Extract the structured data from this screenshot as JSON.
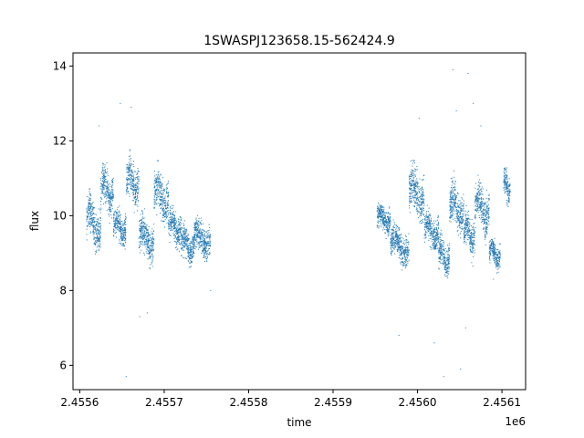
{
  "chart_data": {
    "type": "scatter",
    "title": "1SWASPJ123658.15-562424.9",
    "xlabel": "time",
    "ylabel": "flux",
    "x_offset_label": "1e6",
    "xlim": [
      2455592,
      2456128
    ],
    "ylim": [
      5.35,
      14.35
    ],
    "xticks": [
      2455600,
      2455700,
      2455800,
      2455900,
      2456000,
      2456100
    ],
    "xtick_labels": [
      "2.4556",
      "2.4557",
      "2.4558",
      "2.4559",
      "2.4560",
      "2.4561"
    ],
    "yticks": [
      6,
      8,
      10,
      12,
      14
    ],
    "ytick_labels": [
      "6",
      "8",
      "10",
      "12",
      "14"
    ],
    "marker_color": "#1f77b4",
    "grid": false,
    "segments": [
      {
        "t0": 2455608,
        "t1": 2455625,
        "center": 9.8,
        "spread": 0.9
      },
      {
        "t0": 2455625,
        "t1": 2455640,
        "center": 10.7,
        "spread": 0.8
      },
      {
        "t0": 2455640,
        "t1": 2455655,
        "center": 9.7,
        "spread": 0.6
      },
      {
        "t0": 2455655,
        "t1": 2455670,
        "center": 10.9,
        "spread": 0.8
      },
      {
        "t0": 2455670,
        "t1": 2455688,
        "center": 9.4,
        "spread": 0.7
      },
      {
        "t0": 2455688,
        "t1": 2455705,
        "center": 10.5,
        "spread": 0.8
      },
      {
        "t0": 2455705,
        "t1": 2455720,
        "center": 9.7,
        "spread": 0.6
      },
      {
        "t0": 2455720,
        "t1": 2455735,
        "center": 9.2,
        "spread": 0.6
      },
      {
        "t0": 2455735,
        "t1": 2455755,
        "center": 9.4,
        "spread": 0.6
      },
      {
        "t0": 2455952,
        "t1": 2455968,
        "center": 9.9,
        "spread": 0.5
      },
      {
        "t0": 2455968,
        "t1": 2455990,
        "center": 9.2,
        "spread": 0.6
      },
      {
        "t0": 2455990,
        "t1": 2456008,
        "center": 10.6,
        "spread": 0.9
      },
      {
        "t0": 2456008,
        "t1": 2456025,
        "center": 9.6,
        "spread": 0.6
      },
      {
        "t0": 2456025,
        "t1": 2456038,
        "center": 8.9,
        "spread": 0.6
      },
      {
        "t0": 2456038,
        "t1": 2456055,
        "center": 10.2,
        "spread": 0.8
      },
      {
        "t0": 2456055,
        "t1": 2456068,
        "center": 9.5,
        "spread": 0.7
      },
      {
        "t0": 2456068,
        "t1": 2456085,
        "center": 10.2,
        "spread": 0.8
      },
      {
        "t0": 2456085,
        "t1": 2456098,
        "center": 9.0,
        "spread": 0.5
      },
      {
        "t0": 2456102,
        "t1": 2456110,
        "center": 10.8,
        "spread": 0.6
      }
    ],
    "outliers": [
      [
        2455623,
        12.4
      ],
      [
        2455648,
        13.0
      ],
      [
        2455655,
        5.7
      ],
      [
        2455661,
        12.9
      ],
      [
        2455671,
        7.3
      ],
      [
        2455680,
        7.4
      ],
      [
        2455755,
        8.0
      ],
      [
        2456020,
        6.6
      ],
      [
        2456031,
        5.7
      ],
      [
        2456042,
        13.9
      ],
      [
        2456046,
        12.8
      ],
      [
        2456051,
        5.9
      ],
      [
        2456060,
        13.8
      ],
      [
        2456066,
        13.0
      ],
      [
        2456057,
        7.0
      ],
      [
        2455978,
        6.8
      ],
      [
        2456002,
        12.6
      ],
      [
        2456075,
        12.4
      ],
      [
        2456090,
        8.3
      ]
    ]
  }
}
